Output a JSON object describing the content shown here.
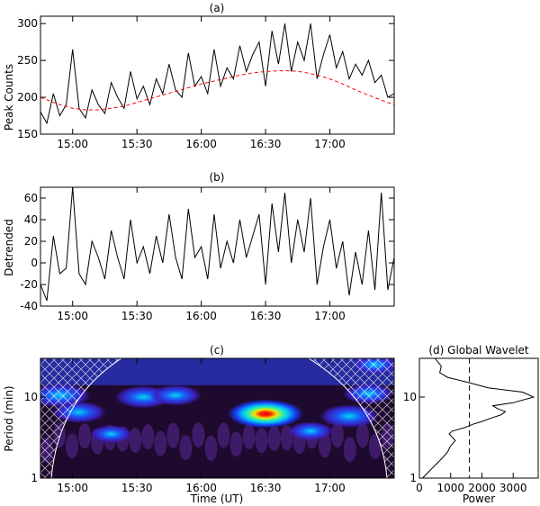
{
  "chart_data": [
    {
      "type": "line",
      "title": "(a)",
      "ylabel": "Peak Counts",
      "xlabel": "",
      "xlim": [
        14.75,
        17.5
      ],
      "ylim": [
        150,
        310
      ],
      "x_ticks": [
        15.0,
        15.5,
        16.0,
        16.5,
        17.0
      ],
      "x_tick_labels": [
        "15:00",
        "15:30",
        "16:00",
        "16:30",
        "17:00"
      ],
      "y_ticks": [
        150,
        200,
        250,
        300
      ],
      "y_tick_labels": [
        "150",
        "200",
        "250",
        "300"
      ],
      "series": [
        {
          "name": "peak counts",
          "color": "#000000",
          "x": [
            14.75,
            14.8,
            14.85,
            14.9,
            14.95,
            15.0,
            15.05,
            15.1,
            15.15,
            15.2,
            15.25,
            15.3,
            15.35,
            15.4,
            15.45,
            15.5,
            15.55,
            15.6,
            15.65,
            15.7,
            15.75,
            15.8,
            15.85,
            15.9,
            15.95,
            16.0,
            16.05,
            16.1,
            16.15,
            16.2,
            16.25,
            16.3,
            16.35,
            16.4,
            16.45,
            16.5,
            16.55,
            16.6,
            16.65,
            16.7,
            16.75,
            16.8,
            16.85,
            16.9,
            16.95,
            17.0,
            17.05,
            17.1,
            17.15,
            17.2,
            17.25,
            17.3,
            17.35,
            17.4,
            17.45,
            17.5
          ],
          "values": [
            180,
            165,
            205,
            175,
            190,
            265,
            185,
            172,
            210,
            190,
            178,
            220,
            200,
            185,
            235,
            198,
            215,
            190,
            225,
            205,
            245,
            210,
            200,
            260,
            215,
            228,
            205,
            265,
            215,
            240,
            225,
            270,
            235,
            258,
            275,
            215,
            290,
            245,
            300,
            235,
            275,
            250,
            300,
            225,
            258,
            285,
            240,
            262,
            225,
            245,
            230,
            250,
            220,
            230,
            200,
            205
          ]
        },
        {
          "name": "trend",
          "color": "#ff0000",
          "dashed": true,
          "x": [
            14.75,
            14.9,
            15.0,
            15.1,
            15.2,
            15.3,
            15.4,
            15.5,
            15.6,
            15.7,
            15.8,
            15.9,
            16.0,
            16.1,
            16.2,
            16.3,
            16.4,
            16.5,
            16.6,
            16.7,
            16.8,
            16.9,
            17.0,
            17.1,
            17.2,
            17.3,
            17.4,
            17.5
          ],
          "values": [
            200,
            190,
            185,
            183,
            183,
            185,
            188,
            193,
            198,
            203,
            208,
            213,
            218,
            222,
            226,
            230,
            233,
            235,
            236,
            236,
            234,
            230,
            225,
            218,
            210,
            203,
            196,
            190
          ]
        }
      ]
    },
    {
      "type": "line",
      "title": "(b)",
      "ylabel": "Detrended",
      "xlabel": "",
      "xlim": [
        14.75,
        17.5
      ],
      "ylim": [
        -40,
        70
      ],
      "x_ticks": [
        15.0,
        15.5,
        16.0,
        16.5,
        17.0
      ],
      "x_tick_labels": [
        "15:00",
        "15:30",
        "16:00",
        "16:30",
        "17:00"
      ],
      "y_ticks": [
        -40,
        -20,
        0,
        20,
        40,
        60
      ],
      "y_tick_labels": [
        "-40",
        "-20",
        "0",
        "20",
        "40",
        "60"
      ],
      "series": [
        {
          "name": "detrended",
          "color": "#000000",
          "x": [
            14.75,
            14.8,
            14.85,
            14.9,
            14.95,
            15.0,
            15.05,
            15.1,
            15.15,
            15.2,
            15.25,
            15.3,
            15.35,
            15.4,
            15.45,
            15.5,
            15.55,
            15.6,
            15.65,
            15.7,
            15.75,
            15.8,
            15.85,
            15.9,
            15.95,
            16.0,
            16.05,
            16.1,
            16.15,
            16.2,
            16.25,
            16.3,
            16.35,
            16.4,
            16.45,
            16.5,
            16.55,
            16.6,
            16.65,
            16.7,
            16.75,
            16.8,
            16.85,
            16.9,
            16.95,
            17.0,
            17.05,
            17.1,
            17.15,
            17.2,
            17.25,
            17.3,
            17.35,
            17.4,
            17.45,
            17.5
          ],
          "values": [
            -20,
            -35,
            25,
            -10,
            -5,
            70,
            -10,
            -20,
            20,
            5,
            -15,
            30,
            5,
            -15,
            40,
            0,
            15,
            -10,
            25,
            0,
            45,
            5,
            -15,
            50,
            5,
            15,
            -15,
            45,
            -5,
            20,
            0,
            40,
            5,
            25,
            45,
            -20,
            55,
            10,
            65,
            0,
            40,
            10,
            60,
            -20,
            15,
            40,
            -5,
            20,
            -30,
            10,
            -20,
            30,
            -25,
            65,
            -25,
            5
          ]
        }
      ]
    },
    {
      "type": "heatmap",
      "title": "(c)",
      "xlabel": "Time (UT)",
      "ylabel": "Period (min)",
      "xlim": [
        14.75,
        17.5
      ],
      "ylim_log": [
        1,
        30
      ],
      "x_ticks": [
        15.0,
        15.5,
        16.0,
        16.5,
        17.0
      ],
      "x_tick_labels": [
        "15:00",
        "15:30",
        "16:00",
        "16:30",
        "17:00"
      ],
      "y_ticks": [
        1,
        10
      ],
      "y_tick_labels": [
        "1",
        "10"
      ],
      "power_peaks": [
        {
          "time": 14.9,
          "period": 10.5,
          "strength": 0.75
        },
        {
          "time": 15.05,
          "period": 6.5,
          "strength": 0.6
        },
        {
          "time": 15.55,
          "period": 10,
          "strength": 0.65
        },
        {
          "time": 15.8,
          "period": 10.5,
          "strength": 0.55
        },
        {
          "time": 16.5,
          "period": 6.2,
          "strength": 1.0
        },
        {
          "time": 17.15,
          "period": 5.8,
          "strength": 0.7
        },
        {
          "time": 17.3,
          "period": 11,
          "strength": 0.55
        },
        {
          "time": 17.35,
          "period": 25,
          "strength": 0.45
        },
        {
          "time": 16.85,
          "period": 3.8,
          "strength": 0.45
        },
        {
          "time": 15.3,
          "period": 3.5,
          "strength": 0.4
        }
      ]
    },
    {
      "type": "line",
      "title": "(d) Global Wavelet",
      "xlabel": "Power",
      "ylabel": "",
      "xlim": [
        0,
        3800
      ],
      "ylim_log": [
        1,
        30
      ],
      "x_ticks": [
        0,
        1000,
        2000,
        3000
      ],
      "x_tick_labels": [
        "0",
        "1000",
        "2000",
        "3000"
      ],
      "y_ticks": [
        1,
        10
      ],
      "y_tick_labels": [
        "1",
        "10"
      ],
      "series": [
        {
          "name": "global power",
          "color": "#000000",
          "power": [
            100,
            300,
            550,
            750,
            900,
            1000,
            1150,
            1050,
            950,
            1050,
            1450,
            1700,
            2000,
            2300,
            2600,
            2750,
            2500,
            2350,
            3000,
            3650,
            3300,
            2200,
            1600,
            900,
            650,
            700,
            500
          ],
          "period": [
            1.0,
            1.2,
            1.5,
            1.8,
            2.1,
            2.5,
            2.9,
            3.2,
            3.5,
            3.8,
            4.2,
            4.6,
            5.0,
            5.5,
            6.0,
            6.6,
            7.2,
            7.8,
            8.5,
            10.0,
            11.5,
            13.0,
            15.0,
            17.5,
            20.0,
            24.0,
            30.0
          ]
        },
        {
          "name": "significance",
          "color": "#000000",
          "dashed": true,
          "power_level": 1600
        }
      ]
    }
  ]
}
